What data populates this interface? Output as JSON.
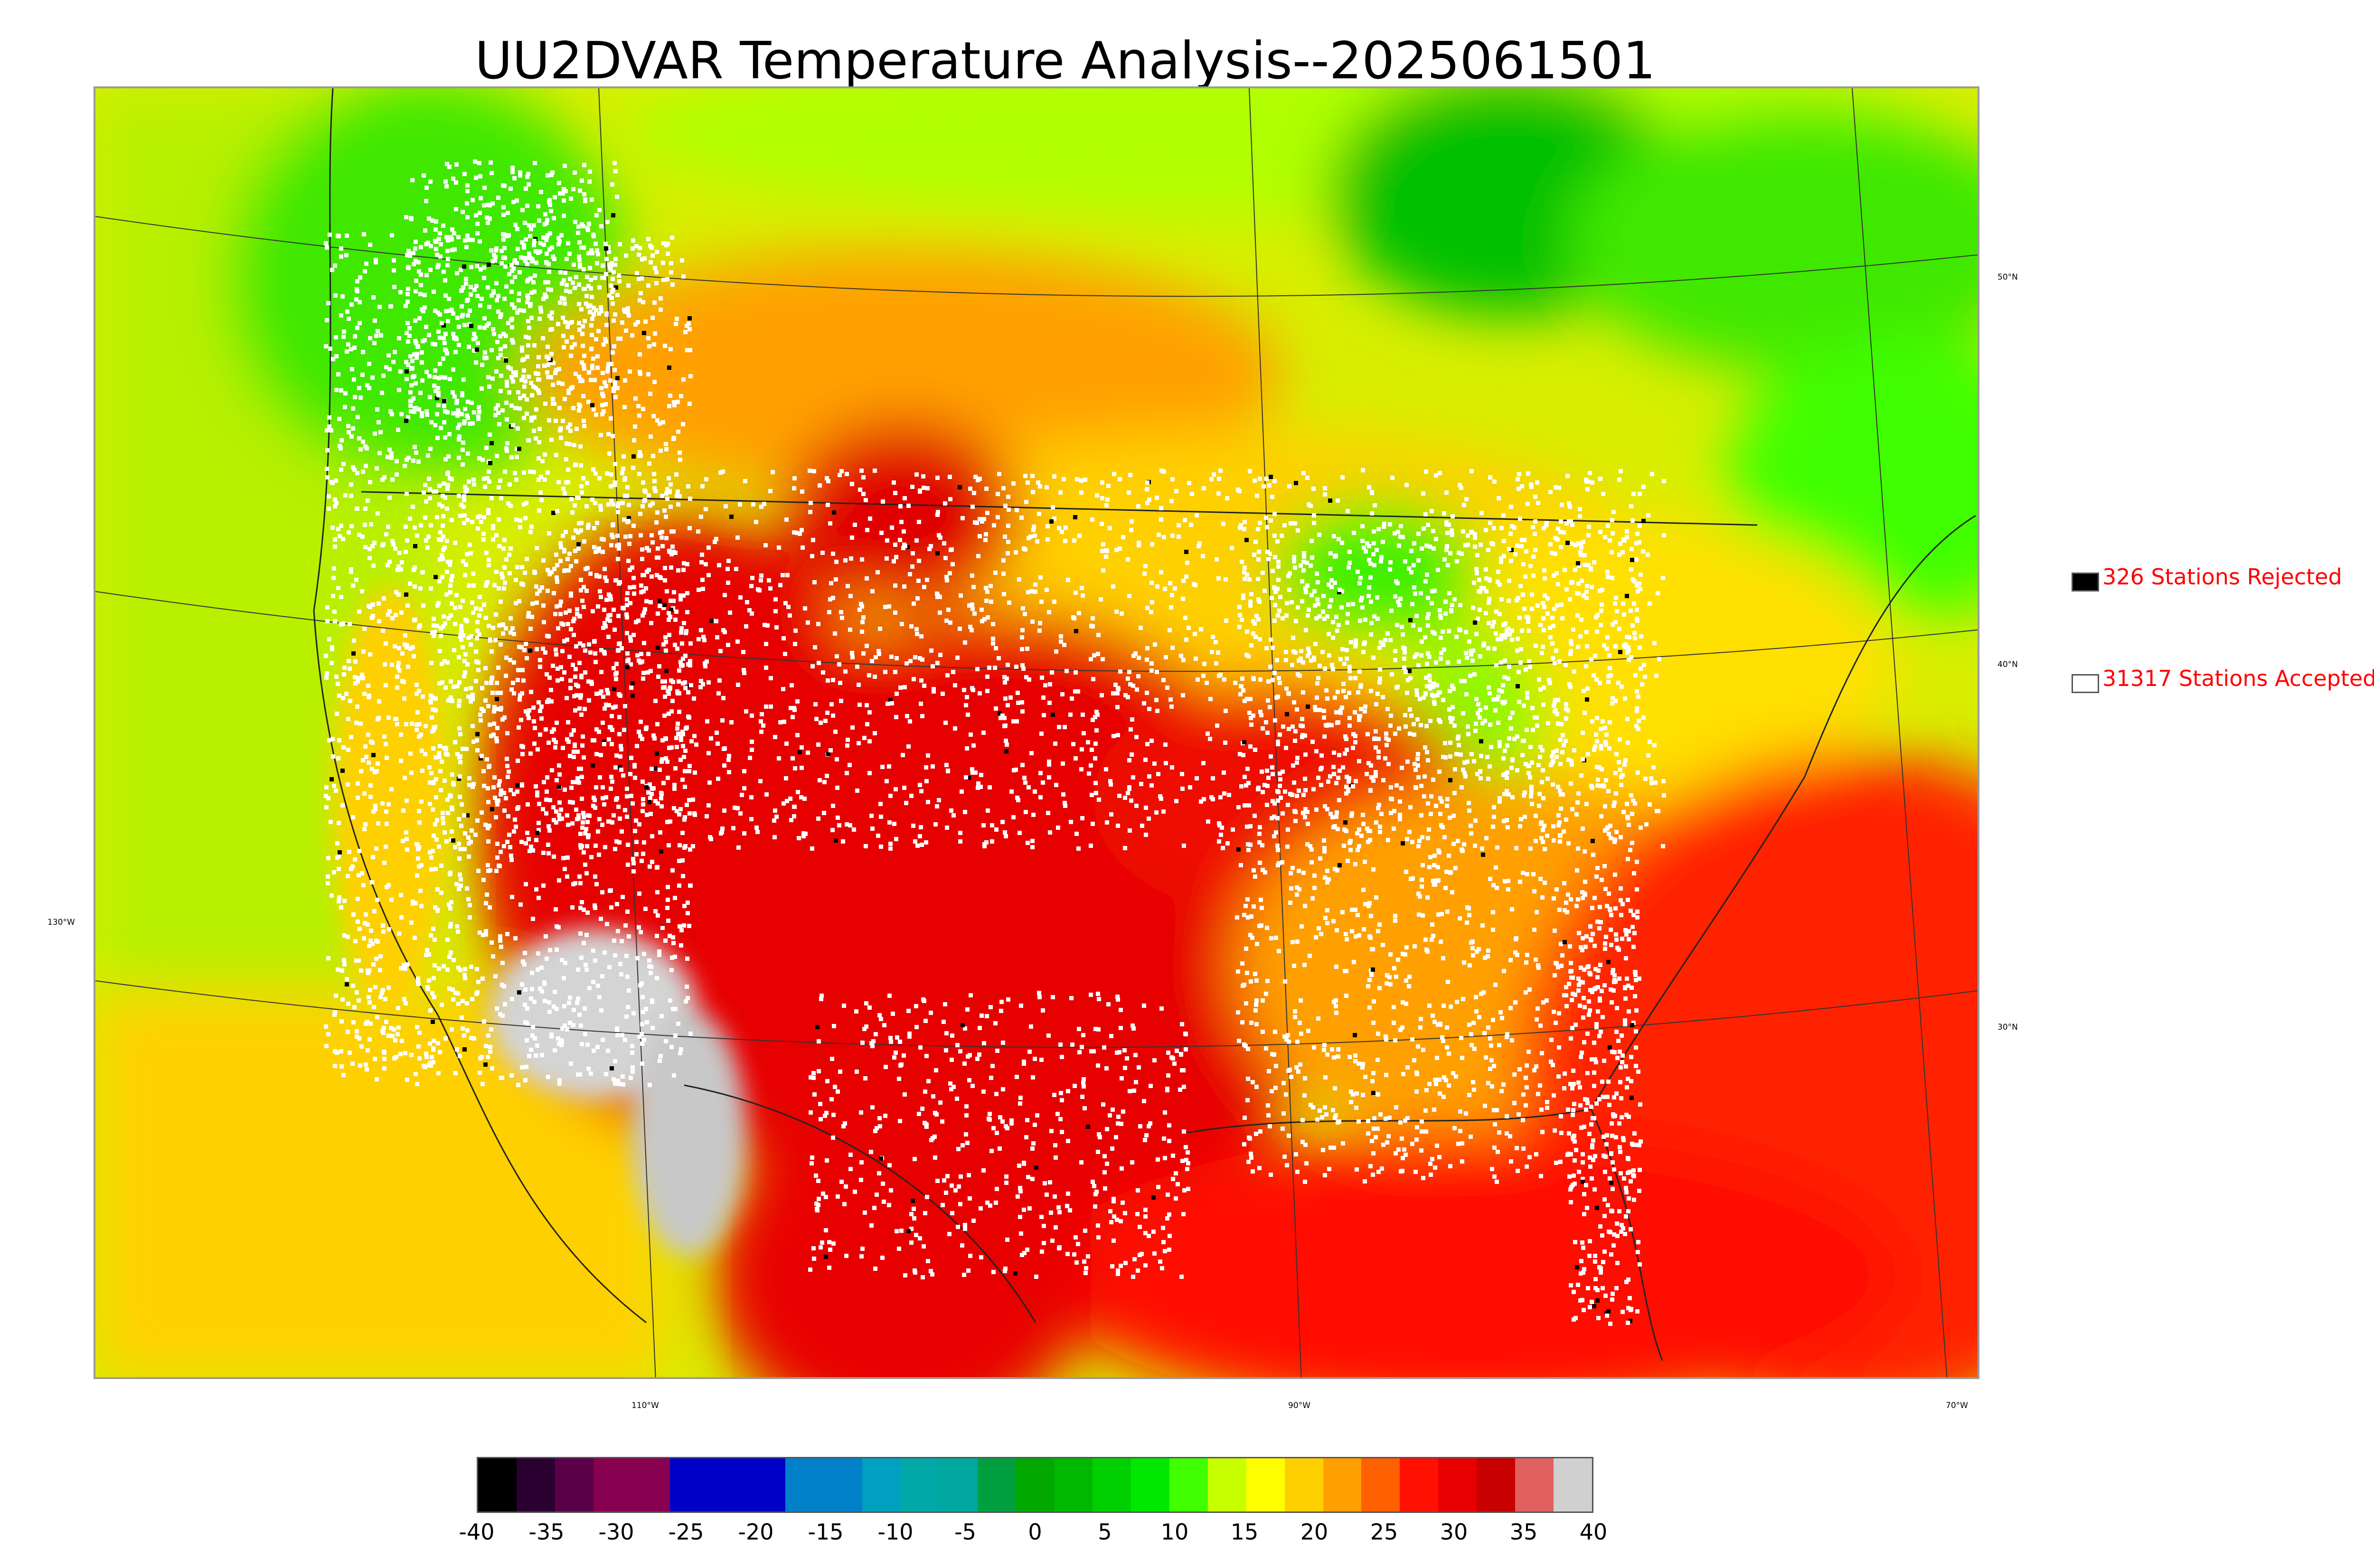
{
  "title": "UU2DVAR Temperature Analysis--2025061501",
  "axis_labels": {
    "lat_50": "50°N",
    "lat_40": "40°N",
    "lat_30": "30°N",
    "lon_130": "130°W",
    "lon_110": "110°W",
    "lon_90": "90°W",
    "lon_70": "70°W"
  },
  "legend": {
    "rejected": {
      "count": "326",
      "label": "326 Stations Rejected",
      "color": "#000000"
    },
    "accepted": {
      "count": "31317",
      "label": "31317 Stations Accepted",
      "color": "#ffffff"
    }
  },
  "colorbar": {
    "min": -40,
    "max": 40,
    "tick_labels": [
      "-40",
      "-35",
      "-30",
      "-25",
      "-20",
      "-15",
      "-10",
      "-5",
      "0",
      "5",
      "10",
      "15",
      "20",
      "25",
      "30",
      "35",
      "40"
    ],
    "colors": [
      "#000000",
      "#2a0030",
      "#5a0048",
      "#880050",
      "#880050",
      "#0000c8",
      "#0000c8",
      "#0000c8",
      "#0080c8",
      "#0080c8",
      "#00a0c0",
      "#00a8a8",
      "#00a8a0",
      "#00a040",
      "#00a800",
      "#00b800",
      "#00d000",
      "#00e800",
      "#40ff00",
      "#c8ff00",
      "#ffff00",
      "#ffd000",
      "#ffa000",
      "#ff6000",
      "#ff1000",
      "#e80000",
      "#c80000",
      "#e06060",
      "#d0d0d0"
    ]
  },
  "map_colors": {
    "ocean_west": "#dfef00",
    "hot": "#e80000",
    "warm": "#ffa000",
    "mild": "#ffe000",
    "cool": "#a8ff00",
    "cold": "#00d000",
    "very_hot": "#d0d0d0"
  }
}
